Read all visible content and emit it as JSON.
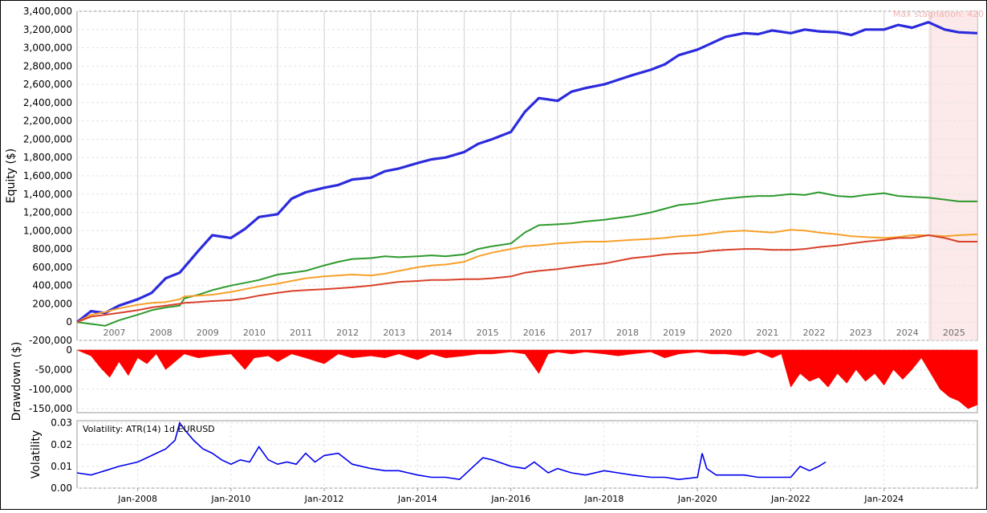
{
  "chart_data": [
    {
      "type": "line",
      "panel": "equity",
      "ylabel": "Equity ($)",
      "ylim": [
        -200000,
        3400000
      ],
      "y_ticks": [
        "-200,000",
        "0",
        "200,000",
        "400,000",
        "600,000",
        "800,000",
        "1,000,000",
        "1,200,000",
        "1,400,000",
        "1,600,000",
        "1,800,000",
        "2,000,000",
        "2,200,000",
        "2,400,000",
        "2,600,000",
        "2,800,000",
        "3,000,000",
        "3,200,000",
        "3,400,000"
      ],
      "y_tick_values": [
        -200000,
        0,
        200000,
        400000,
        600000,
        800000,
        1000000,
        1200000,
        1400000,
        1600000,
        1800000,
        2000000,
        2200000,
        2400000,
        2600000,
        2800000,
        3000000,
        3200000,
        3400000
      ],
      "year_labels": [
        "2007",
        "2008",
        "2009",
        "2010",
        "2011",
        "2012",
        "2013",
        "2014",
        "2015",
        "2016",
        "2017",
        "2018",
        "2019",
        "2020",
        "2021",
        "2022",
        "2023",
        "2024",
        "2025"
      ],
      "x_range": [
        2006.7,
        2026.0
      ],
      "annotation": "Max stagnation: 420",
      "stagnation_range": [
        2024.95,
        2026.0
      ],
      "grid": true,
      "series": [
        {
          "color": "#2b2bdd",
          "x": [
            2006.7,
            2007.0,
            2007.3,
            2007.6,
            2008.0,
            2008.3,
            2008.6,
            2008.9,
            2009.0,
            2009.3,
            2009.6,
            2010.0,
            2010.3,
            2010.6,
            2011.0,
            2011.3,
            2011.6,
            2012.0,
            2012.3,
            2012.6,
            2013.0,
            2013.3,
            2013.6,
            2014.0,
            2014.3,
            2014.6,
            2015.0,
            2015.3,
            2015.6,
            2016.0,
            2016.3,
            2016.6,
            2017.0,
            2017.3,
            2017.6,
            2018.0,
            2018.3,
            2018.6,
            2019.0,
            2019.3,
            2019.6,
            2020.0,
            2020.3,
            2020.6,
            2021.0,
            2021.3,
            2021.6,
            2022.0,
            2022.3,
            2022.6,
            2023.0,
            2023.3,
            2023.6,
            2024.0,
            2024.3,
            2024.6,
            2024.95,
            2025.3,
            2025.6,
            2026.0
          ],
          "y": [
            0,
            120000,
            100000,
            180000,
            250000,
            320000,
            480000,
            540000,
            600000,
            780000,
            950000,
            920000,
            1020000,
            1150000,
            1180000,
            1350000,
            1420000,
            1470000,
            1500000,
            1560000,
            1580000,
            1650000,
            1680000,
            1740000,
            1780000,
            1800000,
            1860000,
            1950000,
            2000000,
            2080000,
            2300000,
            2450000,
            2420000,
            2520000,
            2560000,
            2600000,
            2650000,
            2700000,
            2760000,
            2820000,
            2920000,
            2980000,
            3050000,
            3120000,
            3160000,
            3150000,
            3190000,
            3160000,
            3200000,
            3180000,
            3170000,
            3140000,
            3200000,
            3200000,
            3250000,
            3220000,
            3280000,
            3200000,
            3170000,
            3160000
          ]
        },
        {
          "color": "#2e9a2e",
          "x": [
            2006.7,
            2007.0,
            2007.3,
            2007.6,
            2008.0,
            2008.3,
            2008.6,
            2008.9,
            2009.0,
            2009.3,
            2009.6,
            2010.0,
            2010.3,
            2010.6,
            2011.0,
            2011.3,
            2011.6,
            2012.0,
            2012.3,
            2012.6,
            2013.0,
            2013.3,
            2013.6,
            2014.0,
            2014.3,
            2014.6,
            2015.0,
            2015.3,
            2015.6,
            2016.0,
            2016.3,
            2016.6,
            2017.0,
            2017.3,
            2017.6,
            2018.0,
            2018.3,
            2018.6,
            2019.0,
            2019.3,
            2019.6,
            2020.0,
            2020.3,
            2020.6,
            2021.0,
            2021.3,
            2021.6,
            2022.0,
            2022.3,
            2022.6,
            2023.0,
            2023.3,
            2023.6,
            2024.0,
            2024.3,
            2024.6,
            2024.95,
            2025.3,
            2025.6,
            2026.0
          ],
          "y": [
            0,
            -20000,
            -40000,
            20000,
            80000,
            130000,
            160000,
            180000,
            260000,
            300000,
            350000,
            400000,
            430000,
            460000,
            520000,
            540000,
            560000,
            620000,
            660000,
            690000,
            700000,
            720000,
            710000,
            720000,
            730000,
            720000,
            740000,
            800000,
            830000,
            860000,
            980000,
            1060000,
            1070000,
            1080000,
            1100000,
            1120000,
            1140000,
            1160000,
            1200000,
            1240000,
            1280000,
            1300000,
            1330000,
            1350000,
            1370000,
            1380000,
            1380000,
            1400000,
            1390000,
            1420000,
            1380000,
            1370000,
            1390000,
            1410000,
            1380000,
            1370000,
            1360000,
            1340000,
            1320000,
            1320000
          ]
        },
        {
          "color": "#f7a02a",
          "x": [
            2006.7,
            2007.0,
            2007.3,
            2007.6,
            2008.0,
            2008.3,
            2008.6,
            2008.9,
            2009.0,
            2009.3,
            2009.6,
            2010.0,
            2010.3,
            2010.6,
            2011.0,
            2011.3,
            2011.6,
            2012.0,
            2012.3,
            2012.6,
            2013.0,
            2013.3,
            2013.6,
            2014.0,
            2014.3,
            2014.6,
            2015.0,
            2015.3,
            2015.6,
            2016.0,
            2016.3,
            2016.6,
            2017.0,
            2017.3,
            2017.6,
            2018.0,
            2018.3,
            2018.6,
            2019.0,
            2019.3,
            2019.6,
            2020.0,
            2020.3,
            2020.6,
            2021.0,
            2021.3,
            2021.6,
            2022.0,
            2022.3,
            2022.6,
            2023.0,
            2023.3,
            2023.6,
            2024.0,
            2024.3,
            2024.6,
            2024.95,
            2025.3,
            2025.6,
            2026.0
          ],
          "y": [
            0,
            80000,
            110000,
            150000,
            190000,
            210000,
            220000,
            250000,
            280000,
            290000,
            300000,
            330000,
            360000,
            390000,
            420000,
            450000,
            480000,
            500000,
            510000,
            520000,
            510000,
            530000,
            560000,
            600000,
            620000,
            630000,
            660000,
            720000,
            760000,
            800000,
            830000,
            840000,
            860000,
            870000,
            880000,
            880000,
            890000,
            900000,
            910000,
            920000,
            940000,
            950000,
            970000,
            990000,
            1000000,
            990000,
            980000,
            1010000,
            1000000,
            980000,
            960000,
            940000,
            930000,
            920000,
            930000,
            950000,
            950000,
            940000,
            950000,
            960000
          ]
        },
        {
          "color": "#d8412a",
          "x": [
            2006.7,
            2007.0,
            2007.3,
            2007.6,
            2008.0,
            2008.3,
            2008.6,
            2008.9,
            2009.0,
            2009.3,
            2009.6,
            2010.0,
            2010.3,
            2010.6,
            2011.0,
            2011.3,
            2011.6,
            2012.0,
            2012.3,
            2012.6,
            2013.0,
            2013.3,
            2013.6,
            2014.0,
            2014.3,
            2014.6,
            2015.0,
            2015.3,
            2015.6,
            2016.0,
            2016.3,
            2016.6,
            2017.0,
            2017.3,
            2017.6,
            2018.0,
            2018.3,
            2018.6,
            2019.0,
            2019.3,
            2019.6,
            2020.0,
            2020.3,
            2020.6,
            2021.0,
            2021.3,
            2021.6,
            2022.0,
            2022.3,
            2022.6,
            2023.0,
            2023.3,
            2023.6,
            2024.0,
            2024.3,
            2024.6,
            2024.95,
            2025.3,
            2025.6,
            2026.0
          ],
          "y": [
            0,
            60000,
            80000,
            100000,
            130000,
            160000,
            180000,
            200000,
            210000,
            220000,
            230000,
            240000,
            260000,
            290000,
            320000,
            340000,
            350000,
            360000,
            370000,
            380000,
            400000,
            420000,
            440000,
            450000,
            460000,
            460000,
            470000,
            470000,
            480000,
            500000,
            540000,
            560000,
            580000,
            600000,
            620000,
            640000,
            670000,
            700000,
            720000,
            740000,
            750000,
            760000,
            780000,
            790000,
            800000,
            800000,
            790000,
            790000,
            800000,
            820000,
            840000,
            860000,
            880000,
            900000,
            920000,
            920000,
            950000,
            920000,
            880000,
            880000
          ]
        }
      ]
    },
    {
      "type": "area",
      "panel": "drawdown",
      "ylabel": "Drawdown ($)",
      "ylim": [
        -160000,
        0
      ],
      "y_ticks": [
        "0",
        "-50,000",
        "-100,000",
        "-150,000"
      ],
      "y_tick_values": [
        0,
        -50000,
        -100000,
        -150000
      ],
      "color": "#ff0000",
      "x": [
        2006.7,
        2007.0,
        2007.2,
        2007.4,
        2007.6,
        2007.8,
        2008.0,
        2008.2,
        2008.4,
        2008.6,
        2008.8,
        2009.0,
        2009.3,
        2009.6,
        2010.0,
        2010.3,
        2010.5,
        2010.8,
        2011.0,
        2011.3,
        2011.6,
        2012.0,
        2012.3,
        2012.6,
        2013.0,
        2013.3,
        2013.6,
        2014.0,
        2014.3,
        2014.6,
        2015.0,
        2015.3,
        2015.6,
        2016.0,
        2016.3,
        2016.6,
        2016.8,
        2017.0,
        2017.3,
        2017.6,
        2018.0,
        2018.3,
        2018.6,
        2019.0,
        2019.3,
        2019.6,
        2020.0,
        2020.3,
        2020.6,
        2021.0,
        2021.3,
        2021.6,
        2021.8,
        2022.0,
        2022.2,
        2022.4,
        2022.6,
        2022.8,
        2023.0,
        2023.2,
        2023.4,
        2023.6,
        2023.8,
        2024.0,
        2024.2,
        2024.4,
        2024.6,
        2024.8,
        2025.0,
        2025.2,
        2025.4,
        2025.6,
        2025.8,
        2026.0
      ],
      "y": [
        0,
        -15000,
        -45000,
        -70000,
        -30000,
        -65000,
        -20000,
        -35000,
        -10000,
        -50000,
        -30000,
        -10000,
        -20000,
        -15000,
        -10000,
        -50000,
        -20000,
        -15000,
        -30000,
        -10000,
        -20000,
        -35000,
        -10000,
        -20000,
        -15000,
        -20000,
        -10000,
        -25000,
        -10000,
        -20000,
        -15000,
        -10000,
        -10000,
        -5000,
        -10000,
        -60000,
        -10000,
        -5000,
        -10000,
        -5000,
        -10000,
        -15000,
        -10000,
        -5000,
        -20000,
        -10000,
        -5000,
        -10000,
        -10000,
        -15000,
        -5000,
        -20000,
        -10000,
        -95000,
        -60000,
        -80000,
        -70000,
        -95000,
        -60000,
        -85000,
        -50000,
        -80000,
        -60000,
        -90000,
        -50000,
        -75000,
        -50000,
        -20000,
        -60000,
        -100000,
        -120000,
        -130000,
        -150000,
        -140000
      ]
    },
    {
      "type": "line",
      "panel": "volatility",
      "ylabel": "Volatility",
      "legend_text": "Volatility: ATR(14) 1d EURUSD",
      "ylim": [
        0,
        0.031
      ],
      "y_ticks": [
        "0.03",
        "0.02",
        "0.01",
        "0.00"
      ],
      "y_tick_values": [
        0.03,
        0.02,
        0.01,
        0.0
      ],
      "x_ticks": [
        "Jan-2008",
        "Jan-2010",
        "Jan-2012",
        "Jan-2014",
        "Jan-2016",
        "Jan-2018",
        "Jan-2020",
        "Jan-2022",
        "Jan-2024"
      ],
      "x_tick_values": [
        2008.0,
        2010.0,
        2012.0,
        2014.0,
        2016.0,
        2018.0,
        2020.0,
        2022.0,
        2024.0
      ],
      "color": "#0000ee",
      "x": [
        2006.7,
        2007.0,
        2007.3,
        2007.6,
        2008.0,
        2008.2,
        2008.4,
        2008.6,
        2008.8,
        2008.9,
        2009.0,
        2009.2,
        2009.4,
        2009.6,
        2009.8,
        2010.0,
        2010.2,
        2010.4,
        2010.6,
        2010.8,
        2011.0,
        2011.2,
        2011.4,
        2011.6,
        2011.8,
        2012.0,
        2012.3,
        2012.6,
        2013.0,
        2013.3,
        2013.6,
        2014.0,
        2014.3,
        2014.6,
        2014.9,
        2015.2,
        2015.4,
        2015.6,
        2016.0,
        2016.3,
        2016.5,
        2016.8,
        2017.0,
        2017.3,
        2017.6,
        2018.0,
        2018.3,
        2018.6,
        2019.0,
        2019.3,
        2019.6,
        2020.0,
        2020.1,
        2020.2,
        2020.4,
        2020.6,
        2021.0,
        2021.3,
        2021.6,
        2022.0,
        2022.2,
        2022.4,
        2022.6,
        2022.75
      ],
      "y": [
        0.007,
        0.006,
        0.008,
        0.01,
        0.012,
        0.014,
        0.016,
        0.018,
        0.022,
        0.03,
        0.027,
        0.022,
        0.018,
        0.016,
        0.013,
        0.011,
        0.013,
        0.012,
        0.019,
        0.013,
        0.011,
        0.012,
        0.011,
        0.016,
        0.012,
        0.015,
        0.016,
        0.011,
        0.009,
        0.008,
        0.008,
        0.006,
        0.005,
        0.005,
        0.004,
        0.01,
        0.014,
        0.013,
        0.01,
        0.009,
        0.012,
        0.007,
        0.009,
        0.007,
        0.006,
        0.008,
        0.007,
        0.006,
        0.005,
        0.005,
        0.004,
        0.005,
        0.016,
        0.009,
        0.006,
        0.006,
        0.006,
        0.005,
        0.005,
        0.005,
        0.01,
        0.008,
        0.01,
        0.012
      ]
    }
  ]
}
